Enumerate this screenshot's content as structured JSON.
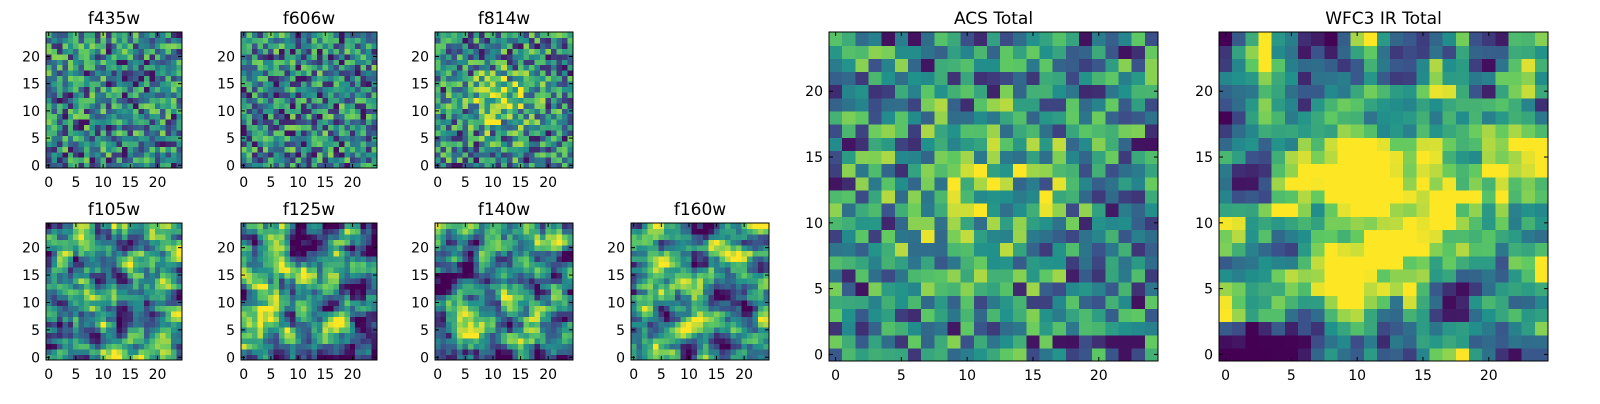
{
  "colormap": [
    "#440154",
    "#3b528b",
    "#21918c",
    "#5ec962",
    "#fde725"
  ],
  "chart_data": [
    {
      "type": "heatmap",
      "title": "f435w",
      "x_ticks": [
        "0",
        "5",
        "10",
        "15",
        "20"
      ],
      "y_ticks": [
        "0",
        "5",
        "10",
        "15",
        "20"
      ],
      "grid_size": 25,
      "xlim": [
        -0.5,
        24.5
      ],
      "ylim": [
        -0.5,
        24.5
      ],
      "style": "noisy",
      "seed": 11
    },
    {
      "type": "heatmap",
      "title": "f606w",
      "x_ticks": [
        "0",
        "5",
        "10",
        "15",
        "20"
      ],
      "y_ticks": [
        "0",
        "5",
        "10",
        "15",
        "20"
      ],
      "grid_size": 25,
      "xlim": [
        -0.5,
        24.5
      ],
      "ylim": [
        -0.5,
        24.5
      ],
      "style": "noisy",
      "seed": 23
    },
    {
      "type": "heatmap",
      "title": "f814w",
      "x_ticks": [
        "0",
        "5",
        "10",
        "15",
        "20"
      ],
      "y_ticks": [
        "0",
        "5",
        "10",
        "15",
        "20"
      ],
      "grid_size": 25,
      "xlim": [
        -0.5,
        24.5
      ],
      "ylim": [
        -0.5,
        24.5
      ],
      "style": "noisy-blob",
      "seed": 37
    },
    {
      "type": "heatmap",
      "title": "f105w",
      "x_ticks": [
        "0",
        "5",
        "10",
        "15",
        "20"
      ],
      "y_ticks": [
        "0",
        "5",
        "10",
        "15",
        "20"
      ],
      "grid_size": 25,
      "xlim": [
        -0.5,
        24.5
      ],
      "ylim": [
        -0.5,
        24.5
      ],
      "style": "smooth",
      "seed": 41
    },
    {
      "type": "heatmap",
      "title": "f125w",
      "x_ticks": [
        "0",
        "5",
        "10",
        "15",
        "20"
      ],
      "y_ticks": [
        "0",
        "5",
        "10",
        "15",
        "20"
      ],
      "grid_size": 25,
      "xlim": [
        -0.5,
        24.5
      ],
      "ylim": [
        -0.5,
        24.5
      ],
      "style": "smooth",
      "seed": 53
    },
    {
      "type": "heatmap",
      "title": "f140w",
      "x_ticks": [
        "0",
        "5",
        "10",
        "15",
        "20"
      ],
      "y_ticks": [
        "0",
        "5",
        "10",
        "15",
        "20"
      ],
      "grid_size": 25,
      "xlim": [
        -0.5,
        24.5
      ],
      "ylim": [
        -0.5,
        24.5
      ],
      "style": "smooth",
      "seed": 67
    },
    {
      "type": "heatmap",
      "title": "f160w",
      "x_ticks": [
        "0",
        "5",
        "10",
        "15",
        "20"
      ],
      "y_ticks": [
        "0",
        "5",
        "10",
        "15",
        "20"
      ],
      "grid_size": 25,
      "xlim": [
        -0.5,
        24.5
      ],
      "ylim": [
        -0.5,
        24.5
      ],
      "style": "smooth",
      "seed": 71
    },
    {
      "type": "heatmap",
      "title": "ACS Total",
      "x_ticks": [
        "0",
        "5",
        "10",
        "15",
        "20"
      ],
      "y_ticks": [
        "0",
        "5",
        "10",
        "15",
        "20"
      ],
      "grid_size": 25,
      "xlim": [
        -0.5,
        24.5
      ],
      "ylim": [
        -0.5,
        24.5
      ],
      "style": "noisy-blob",
      "seed": 83
    },
    {
      "type": "heatmap",
      "title": "WFC3 IR Total",
      "x_ticks": [
        "0",
        "5",
        "10",
        "15",
        "20"
      ],
      "y_ticks": [
        "0",
        "5",
        "10",
        "15",
        "20"
      ],
      "grid_size": 25,
      "xlim": [
        -0.5,
        24.5
      ],
      "ylim": [
        -0.5,
        24.5
      ],
      "style": "smooth-blob",
      "seed": 97
    }
  ]
}
